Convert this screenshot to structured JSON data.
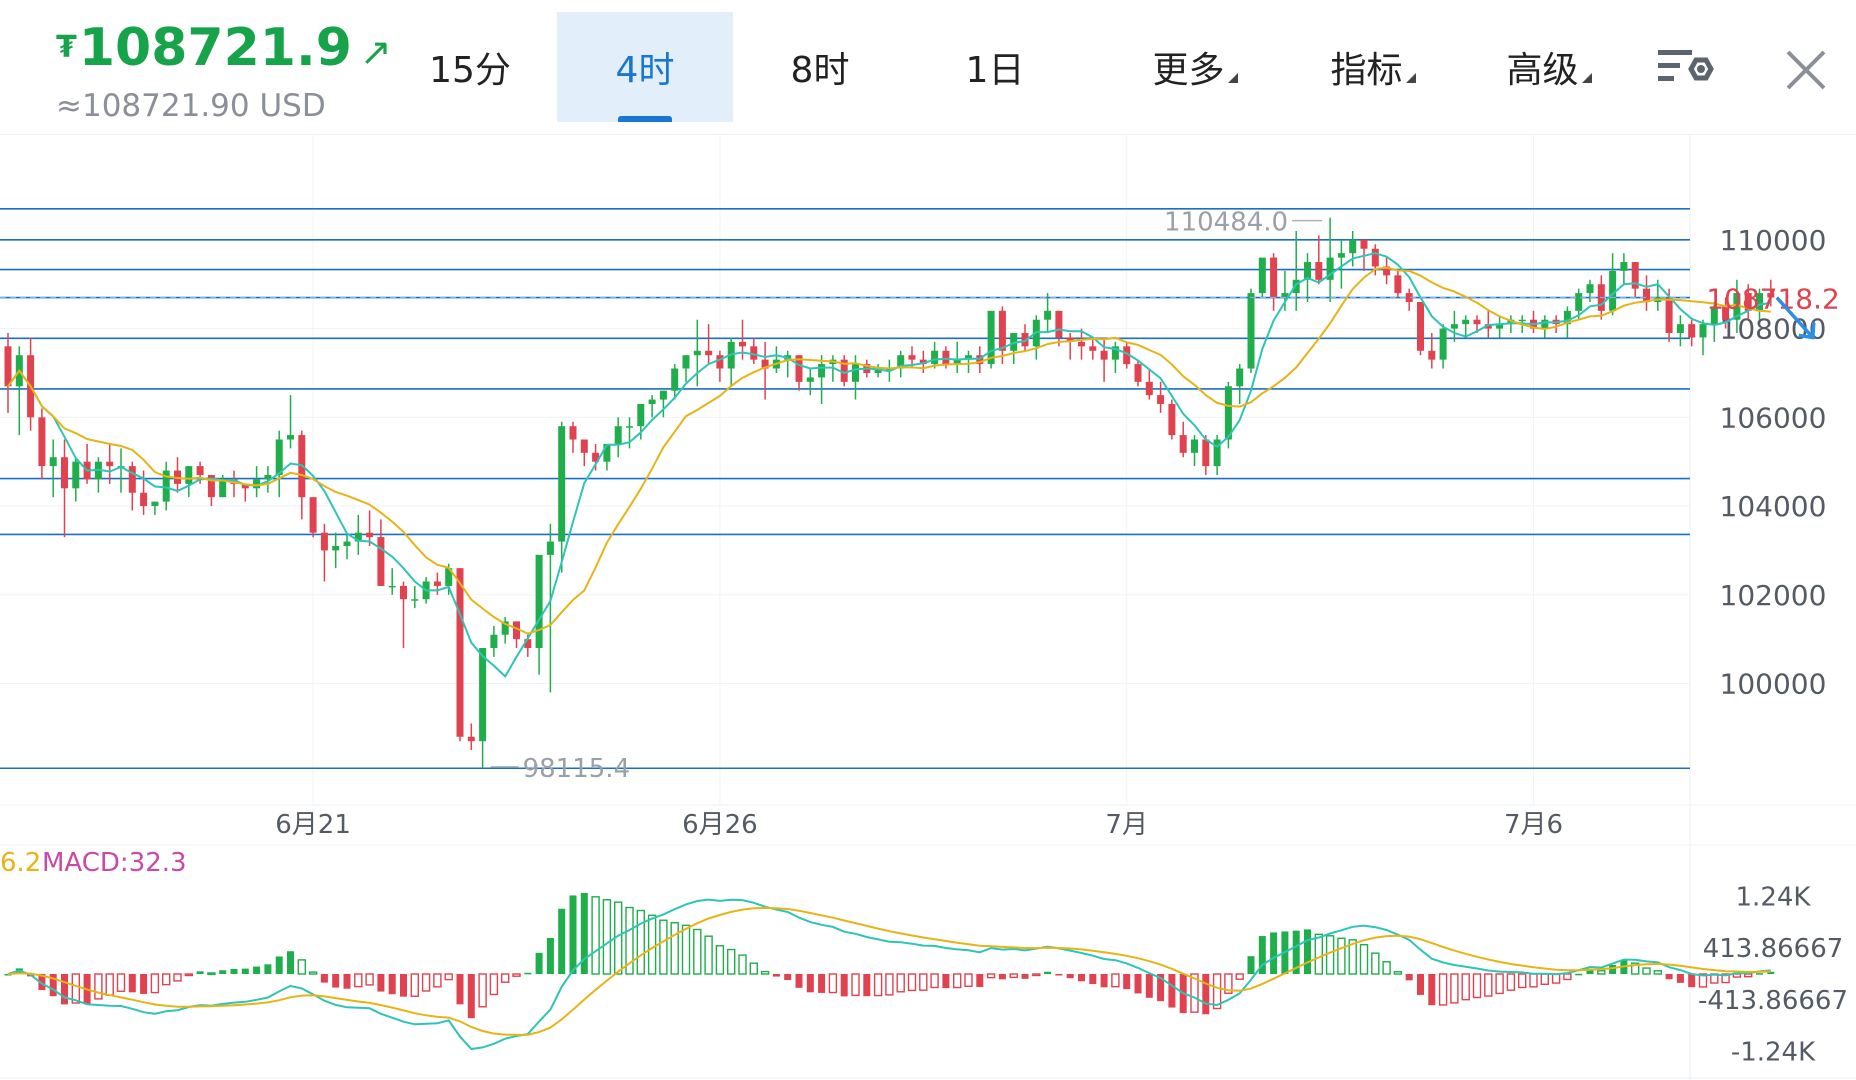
{
  "header": {
    "currency_symbol": "₮",
    "price": "108721.9",
    "price_arrow": "↗",
    "price_usd": "≈108721.90 USD",
    "tabs": [
      {
        "label": "15分",
        "active": false,
        "dropdown": false
      },
      {
        "label": "4时",
        "active": true,
        "dropdown": false
      },
      {
        "label": "8时",
        "active": false,
        "dropdown": false
      },
      {
        "label": "1日",
        "active": false,
        "dropdown": false
      },
      {
        "label": "更多",
        "active": false,
        "dropdown": true
      },
      {
        "label": "指标",
        "active": false,
        "dropdown": true
      },
      {
        "label": "高级",
        "active": false,
        "dropdown": true
      }
    ],
    "settings_icon": "chart-settings-icon",
    "close_icon": "close-icon"
  },
  "colors": {
    "up": "#1fae4b",
    "down": "#e0424f",
    "ma_fast": "#2ec4b6",
    "ma_slow": "#e6b417",
    "hline": "#1b6fc4",
    "price_accent": "#17a349",
    "active_tab": "#1976d2",
    "macd_label": "#c94aa6",
    "current_price_label": "#e0424f"
  },
  "chart_data": [
    {
      "type": "candlestick",
      "title": "",
      "y_axis_ticks": [
        110000,
        108000,
        106000,
        104000,
        102000,
        100000
      ],
      "ylim": [
        97600,
        111800
      ],
      "x_tick_labels": [
        {
          "label": "6月21",
          "candle_index": 27
        },
        {
          "label": "6月26",
          "candle_index": 63
        },
        {
          "label": "7月",
          "candle_index": 99
        },
        {
          "label": "7月6",
          "candle_index": 135
        }
      ],
      "current_price_label": "108718.2",
      "max_label": "110484.0",
      "min_label": "98115.4",
      "horizontal_lines": [
        110700,
        110000,
        109330,
        108700,
        107780,
        106640,
        104620,
        103360,
        98090
      ],
      "candles_ohlc": [
        [
          107600,
          107900,
          106100,
          106700
        ],
        [
          106700,
          107600,
          105600,
          107400
        ],
        [
          107400,
          107800,
          105700,
          106000
        ],
        [
          106000,
          106200,
          104600,
          104900
        ],
        [
          104900,
          105500,
          104200,
          105100
        ],
        [
          105100,
          105500,
          103300,
          104400
        ],
        [
          104400,
          105100,
          104100,
          105000
        ],
        [
          105000,
          105400,
          104500,
          104600
        ],
        [
          104600,
          105100,
          104300,
          105000
        ],
        [
          105000,
          105400,
          104500,
          104900
        ],
        [
          104900,
          105300,
          104300,
          104900
        ],
        [
          104900,
          105000,
          103900,
          104300
        ],
        [
          104300,
          104800,
          103800,
          104000
        ],
        [
          104000,
          104100,
          103800,
          104100
        ],
        [
          104100,
          105000,
          103900,
          104800
        ],
        [
          104800,
          105100,
          104300,
          104500
        ],
        [
          104500,
          104900,
          104200,
          104900
        ],
        [
          104900,
          105000,
          104500,
          104700
        ],
        [
          104700,
          104700,
          104000,
          104200
        ],
        [
          104200,
          104700,
          104200,
          104600
        ],
        [
          104600,
          104800,
          104200,
          104500
        ],
        [
          104500,
          104500,
          104100,
          104400
        ],
        [
          104400,
          104900,
          104200,
          104600
        ],
        [
          104600,
          104900,
          104300,
          104700
        ],
        [
          104700,
          105700,
          104200,
          105500
        ],
        [
          105500,
          106500,
          105300,
          105600
        ],
        [
          105600,
          105700,
          103700,
          104200
        ],
        [
          104200,
          104200,
          103300,
          103400
        ],
        [
          103400,
          103600,
          102300,
          103000
        ],
        [
          103000,
          103400,
          102600,
          103100
        ],
        [
          103100,
          103400,
          102800,
          103200
        ],
        [
          103200,
          103800,
          102900,
          103400
        ],
        [
          103400,
          103900,
          103100,
          103300
        ],
        [
          103300,
          103700,
          102400,
          102200
        ],
        [
          102200,
          102600,
          102000,
          102200
        ],
        [
          102200,
          102300,
          100800,
          101900
        ],
        [
          101900,
          102200,
          101700,
          101900
        ],
        [
          101900,
          102400,
          101800,
          102300
        ],
        [
          102300,
          102500,
          102000,
          102200
        ],
        [
          102200,
          102700,
          102000,
          102600
        ],
        [
          102600,
          102600,
          98700,
          98800
        ],
        [
          98800,
          99100,
          98500,
          98700
        ],
        [
          98700,
          100800,
          98100,
          100800
        ],
        [
          100800,
          101300,
          100600,
          101100
        ],
        [
          101100,
          101500,
          100900,
          101400
        ],
        [
          101400,
          101400,
          100800,
          101000
        ],
        [
          101000,
          101100,
          100600,
          100800
        ],
        [
          100800,
          102800,
          100200,
          102900
        ],
        [
          102900,
          103600,
          99800,
          103200
        ],
        [
          103200,
          105900,
          102500,
          105800
        ],
        [
          105800,
          105900,
          105200,
          105500
        ],
        [
          105500,
          105500,
          104900,
          105200
        ],
        [
          105200,
          105400,
          104800,
          105000
        ],
        [
          105000,
          105400,
          104800,
          105400
        ],
        [
          105400,
          106000,
          105100,
          105800
        ],
        [
          105800,
          106000,
          105300,
          105800
        ],
        [
          105800,
          106300,
          105500,
          106300
        ],
        [
          106300,
          106500,
          106000,
          106400
        ],
        [
          106400,
          106600,
          106000,
          106600
        ],
        [
          106600,
          107200,
          106400,
          107100
        ],
        [
          107100,
          107400,
          106800,
          107400
        ],
        [
          107400,
          108200,
          106700,
          107500
        ],
        [
          107500,
          108100,
          107200,
          107400
        ],
        [
          107400,
          107500,
          106800,
          107100
        ],
        [
          107100,
          107800,
          106700,
          107700
        ],
        [
          107700,
          108200,
          107300,
          107600
        ],
        [
          107600,
          107800,
          107200,
          107300
        ],
        [
          107300,
          107700,
          106400,
          107100
        ],
        [
          107100,
          107600,
          107000,
          107300
        ],
        [
          107300,
          107500,
          106900,
          107400
        ],
        [
          107400,
          107400,
          106600,
          106800
        ],
        [
          106800,
          107100,
          106500,
          106900
        ],
        [
          106900,
          107400,
          106300,
          107200
        ],
        [
          107200,
          107400,
          106800,
          107300
        ],
        [
          107300,
          107400,
          106700,
          106800
        ],
        [
          106800,
          107400,
          106400,
          107200
        ],
        [
          107200,
          107300,
          106900,
          107000
        ],
        [
          107000,
          107200,
          106900,
          107100
        ],
        [
          107100,
          107300,
          106800,
          107100
        ],
        [
          107100,
          107500,
          106900,
          107400
        ],
        [
          107400,
          107600,
          107100,
          107300
        ],
        [
          107300,
          107500,
          107000,
          107200
        ],
        [
          107200,
          107700,
          107100,
          107500
        ],
        [
          107500,
          107600,
          107100,
          107200
        ],
        [
          107200,
          107700,
          107000,
          107300
        ],
        [
          107300,
          107500,
          107000,
          107400
        ],
        [
          107400,
          107600,
          107000,
          107200
        ],
        [
          107200,
          108400,
          107100,
          108400
        ],
        [
          108400,
          108500,
          107200,
          107500
        ],
        [
          107500,
          107900,
          107200,
          107900
        ],
        [
          107900,
          108100,
          107500,
          107600
        ],
        [
          107600,
          108300,
          107300,
          108200
        ],
        [
          108200,
          108800,
          107900,
          108400
        ],
        [
          108400,
          108400,
          107600,
          107800
        ],
        [
          107800,
          107900,
          107300,
          107700
        ],
        [
          107700,
          108000,
          107300,
          107600
        ],
        [
          107600,
          107800,
          107300,
          107500
        ],
        [
          107500,
          107800,
          106800,
          107300
        ],
        [
          107300,
          107700,
          107000,
          107600
        ],
        [
          107600,
          107700,
          107100,
          107200
        ],
        [
          107200,
          107300,
          106700,
          106800
        ],
        [
          106800,
          107100,
          106400,
          106500
        ],
        [
          106500,
          106800,
          106100,
          106300
        ],
        [
          106300,
          106400,
          105500,
          105600
        ],
        [
          105600,
          105900,
          105100,
          105200
        ],
        [
          105200,
          105600,
          104900,
          105500
        ],
        [
          105500,
          105600,
          104700,
          104900
        ],
        [
          104900,
          105600,
          104700,
          105500
        ],
        [
          105500,
          106800,
          105300,
          106700
        ],
        [
          106700,
          107200,
          106300,
          107100
        ],
        [
          107100,
          108900,
          107000,
          108800
        ],
        [
          108800,
          109500,
          108700,
          109600
        ],
        [
          109600,
          109700,
          108400,
          108700
        ],
        [
          108700,
          109300,
          108400,
          108800
        ],
        [
          108800,
          110200,
          108400,
          109100
        ],
        [
          109100,
          109700,
          108600,
          109500
        ],
        [
          109500,
          110100,
          109000,
          109100
        ],
        [
          109100,
          110500,
          108600,
          109600
        ],
        [
          109600,
          110000,
          108900,
          109700
        ],
        [
          109700,
          110200,
          109400,
          110000
        ],
        [
          110000,
          110000,
          109300,
          109800
        ],
        [
          109800,
          109900,
          109200,
          109400
        ],
        [
          109400,
          109600,
          109000,
          109200
        ],
        [
          109200,
          109300,
          108700,
          108800
        ],
        [
          108800,
          108900,
          108400,
          108600
        ],
        [
          108600,
          108600,
          107400,
          107500
        ],
        [
          107500,
          107900,
          107100,
          107300
        ],
        [
          107300,
          108100,
          107100,
          108000
        ],
        [
          108000,
          108400,
          107700,
          108100
        ],
        [
          108100,
          108300,
          107800,
          108200
        ],
        [
          108200,
          108300,
          107900,
          108100
        ],
        [
          108100,
          108400,
          107800,
          108000
        ],
        [
          108000,
          108300,
          107800,
          108100
        ],
        [
          108100,
          108300,
          107900,
          108200
        ],
        [
          108200,
          108300,
          107900,
          108200
        ],
        [
          108200,
          108400,
          107900,
          108000
        ],
        [
          108000,
          108300,
          107800,
          108200
        ],
        [
          108200,
          108300,
          107900,
          108100
        ],
        [
          108100,
          108500,
          107800,
          108400
        ],
        [
          108400,
          108900,
          108200,
          108800
        ],
        [
          108800,
          109100,
          108600,
          109000
        ],
        [
          109000,
          109200,
          108200,
          108400
        ],
        [
          108400,
          109700,
          108300,
          109300
        ],
        [
          109300,
          109700,
          109000,
          109500
        ],
        [
          109500,
          109500,
          108700,
          108900
        ],
        [
          108900,
          109200,
          108400,
          108600
        ],
        [
          108600,
          109100,
          108400,
          108700
        ],
        [
          108700,
          108900,
          107700,
          107900
        ],
        [
          107900,
          108300,
          107600,
          108100
        ],
        [
          108100,
          108200,
          107600,
          107800
        ],
        [
          107800,
          108200,
          107400,
          108100
        ],
        [
          108100,
          108600,
          107700,
          108500
        ],
        [
          108500,
          108700,
          108000,
          108200
        ],
        [
          108200,
          109100,
          107900,
          108800
        ],
        [
          108800,
          109000,
          108200,
          108400
        ],
        [
          108400,
          108900,
          108200,
          108800
        ],
        [
          108800,
          109100,
          108500,
          108700
        ]
      ]
    },
    {
      "type": "bar",
      "title": "",
      "label_prefix": "6.2",
      "label": "MACD:32.3",
      "y_axis_tick_labels": [
        "1.24K",
        "413.86667",
        "-413.86667",
        "-1.24K"
      ],
      "y_axis_tick_values": [
        1240,
        413.87,
        -413.87,
        -1240
      ],
      "ylim": [
        -1500,
        1500
      ]
    }
  ]
}
